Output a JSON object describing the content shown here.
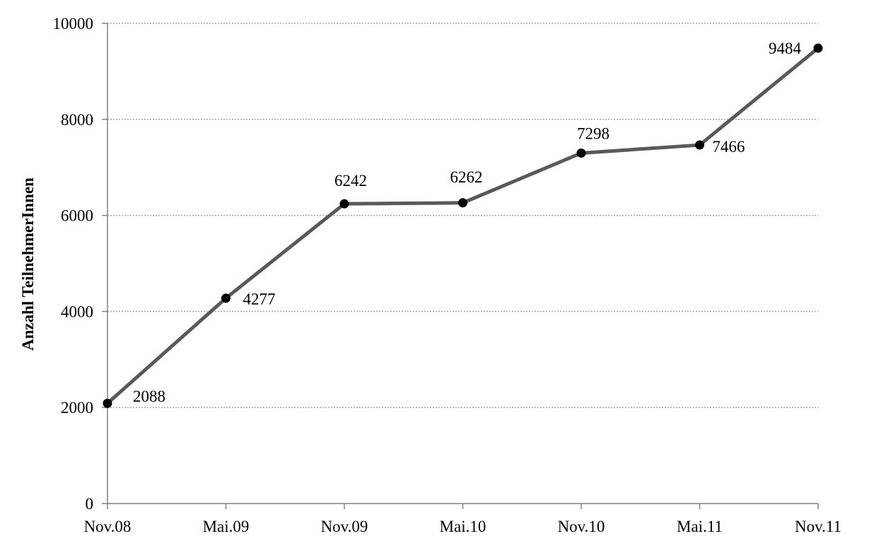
{
  "chart_data": {
    "type": "line",
    "title": "",
    "xlabel": "",
    "ylabel": "Anzahl TeilnehmerInnen",
    "categories": [
      "Nov.08",
      "Mai.09",
      "Nov.09",
      "Mai.10",
      "Nov.10",
      "Mai.11",
      "Nov.11"
    ],
    "series": [
      {
        "values": [
          2088,
          4277,
          6242,
          6262,
          7298,
          7466,
          9484
        ]
      }
    ],
    "data_labels": [
      "2088",
      "4277",
      "6242",
      "6262",
      "7298",
      "7466",
      "9484"
    ],
    "ylim": [
      0,
      10000
    ],
    "yticks": [
      0,
      2000,
      4000,
      6000,
      8000,
      10000
    ],
    "ytick_labels": [
      "0",
      "2000",
      "4000",
      "6000",
      "8000",
      "10000"
    ],
    "grid": true,
    "grid_style": "dotted",
    "legend": "none",
    "colors": {
      "line": "#595959",
      "marker": "#000000",
      "grid": "#a6a6a6",
      "axis": "#808080"
    }
  }
}
